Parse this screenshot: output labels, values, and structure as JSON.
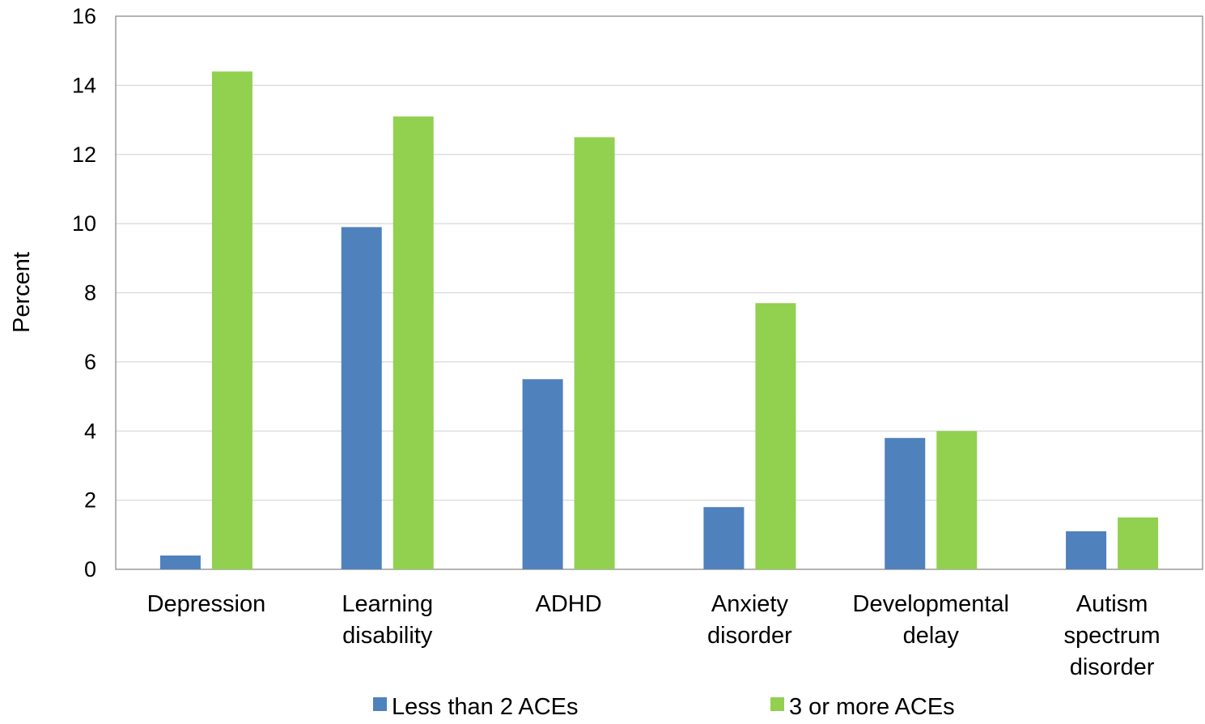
{
  "chart_data": {
    "type": "bar",
    "title": "",
    "xlabel": "",
    "ylabel": "Percent",
    "ylim": [
      0,
      16
    ],
    "yticks": [
      0,
      2,
      4,
      6,
      8,
      10,
      12,
      14,
      16
    ],
    "grid": true,
    "legend_position": "bottom",
    "categories": [
      [
        "Depression"
      ],
      [
        "Learning",
        "disability"
      ],
      [
        "ADHD"
      ],
      [
        "Anxiety",
        "disorder"
      ],
      [
        "Developmental",
        "delay"
      ],
      [
        "Autism",
        "spectrum",
        "disorder"
      ]
    ],
    "series": [
      {
        "name": "Less than 2 ACEs",
        "color": "#4f81bd",
        "values": [
          0.4,
          9.9,
          5.5,
          1.8,
          3.8,
          1.1
        ]
      },
      {
        "name": "3 or more ACEs",
        "color": "#92d050",
        "values": [
          14.4,
          13.1,
          12.5,
          7.7,
          4.0,
          1.5
        ]
      }
    ]
  }
}
